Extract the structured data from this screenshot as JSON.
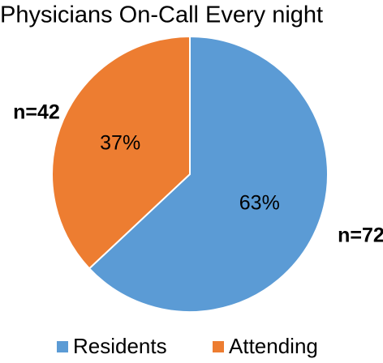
{
  "chart_data": {
    "type": "pie",
    "title": "Physicians On-Call Every night",
    "categories": [
      "Residents",
      "Attending"
    ],
    "values": [
      63,
      37
    ],
    "value_labels": [
      "63%",
      "37%"
    ],
    "colors": [
      "#5b9bd5",
      "#ed7d31"
    ],
    "annotations": [
      "n=72",
      "n=42"
    ],
    "legend": "bottom"
  }
}
